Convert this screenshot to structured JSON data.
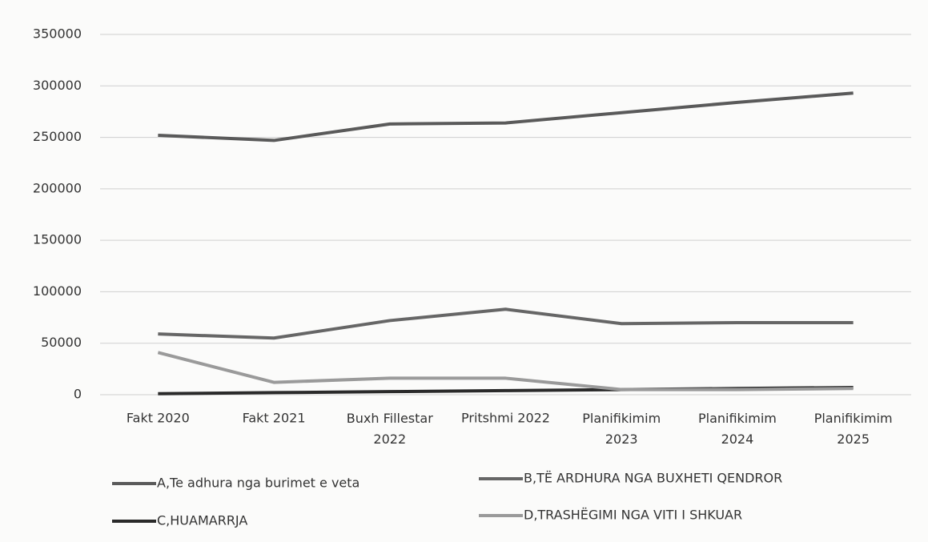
{
  "chart_data": {
    "type": "line",
    "categories": [
      "Fakt 2020",
      "Fakt 2021",
      "Buxh Fillestar 2022",
      "Pritshmi 2022",
      "Planifikimim 2023",
      "Planifikimim 2024",
      "Planifikimim 2025"
    ],
    "series": [
      {
        "name": "A,Te adhura nga burimet e veta",
        "color": "#5a5a5a",
        "values": [
          252000,
          247000,
          263000,
          264000,
          274000,
          284000,
          293000
        ]
      },
      {
        "name": "B,TË ARDHURA NGA BUXHETI QENDROR",
        "color": "#666666",
        "values": [
          59000,
          55000,
          72000,
          83000,
          69000,
          70000,
          70000
        ]
      },
      {
        "name": "C,HUAMARRJA",
        "color": "#2a2a2a",
        "values": [
          1000,
          2000,
          3000,
          4000,
          5000,
          6000,
          7000
        ]
      },
      {
        "name": "D,TRASHËGIMI NGA VITI I SHKUAR",
        "color": "#9a9a9a",
        "values": [
          41000,
          12000,
          16000,
          16000,
          5000,
          5000,
          6000
        ]
      }
    ],
    "ylim": [
      0,
      350000
    ],
    "yticks": [
      0,
      50000,
      100000,
      150000,
      200000,
      250000,
      300000,
      350000
    ],
    "grid": true
  }
}
